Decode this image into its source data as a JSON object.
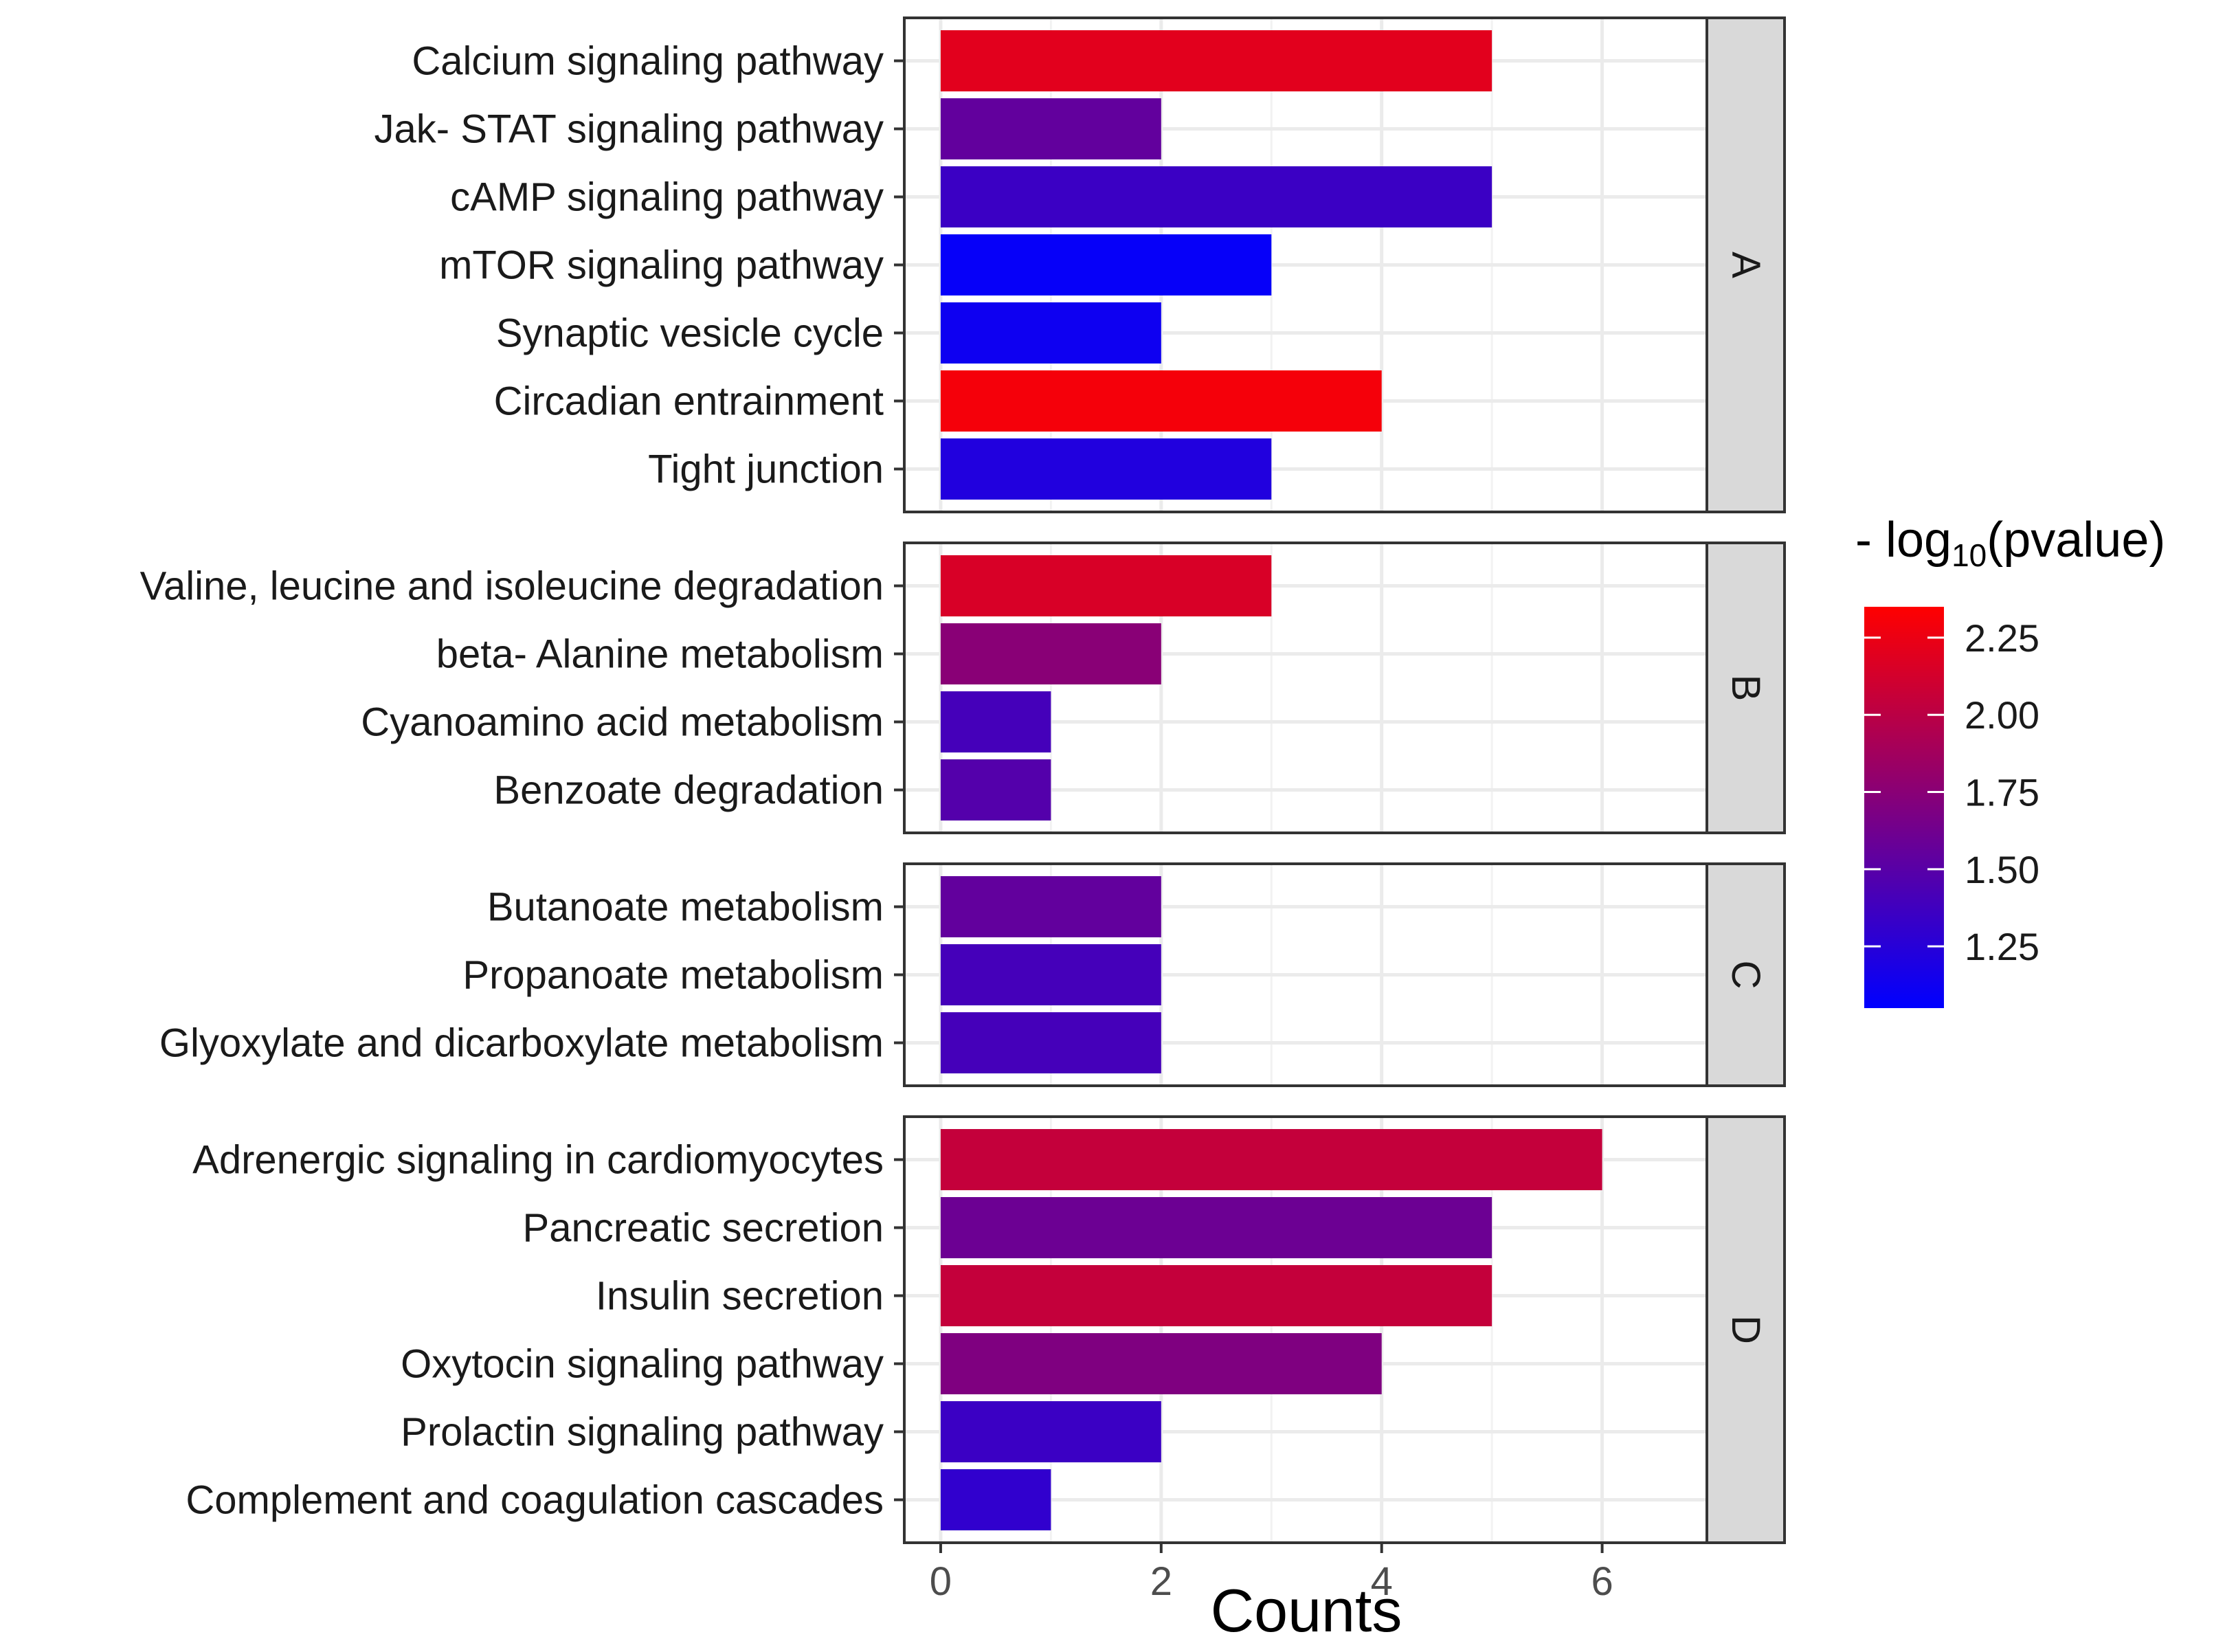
{
  "chart_data": {
    "type": "bar",
    "orientation": "horizontal",
    "xlabel": "Counts",
    "xlim": [
      -0.33,
      6.95
    ],
    "xticks": [
      0,
      2,
      4,
      6
    ],
    "xtick_labels": [
      "0",
      "2",
      "4",
      "6"
    ],
    "grid": true,
    "facets": [
      {
        "label": "A",
        "categories": [
          "Calcium signaling pathway",
          "Jak- STAT signaling pathway",
          "cAMP signaling pathway",
          "mTOR signaling pathway",
          "Synaptic vesicle cycle",
          "Circadian entrainment",
          "Tight junction"
        ],
        "values": [
          5,
          2,
          5,
          3,
          2,
          4,
          3
        ],
        "neg_log10_pvalue": [
          2.2,
          1.55,
          1.35,
          1.08,
          1.12,
          2.3,
          1.22
        ]
      },
      {
        "label": "B",
        "categories": [
          "Valine, leucine and isoleucine degradation",
          "beta- Alanine metabolism",
          "Cyanoamino acid metabolism",
          "Benzoate degradation"
        ],
        "values": [
          3,
          2,
          1,
          1
        ],
        "neg_log10_pvalue": [
          2.15,
          1.75,
          1.4,
          1.48
        ]
      },
      {
        "label": "C",
        "categories": [
          "Butanoate metabolism",
          "Propanoate metabolism",
          "Glyoxylate and dicarboxylate metabolism"
        ],
        "values": [
          2,
          2,
          2
        ],
        "neg_log10_pvalue": [
          1.55,
          1.4,
          1.4
        ]
      },
      {
        "label": "D",
        "categories": [
          "Adrenergic signaling in cardiomyocytes",
          "Pancreatic secretion",
          "Insulin secretion",
          "Oxytocin signaling pathway",
          "Prolactin signaling pathway",
          "Complement and coagulation cascades"
        ],
        "values": [
          6,
          5,
          5,
          4,
          2,
          1
        ],
        "neg_log10_pvalue": [
          2.05,
          1.6,
          2.05,
          1.7,
          1.35,
          1.3
        ]
      }
    ],
    "legend": {
      "title_prefix": "- log",
      "title_subscript": "10",
      "title_suffix": "(pvalue)",
      "position": "right",
      "range": [
        1.05,
        2.35
      ],
      "low_color": "#0000ff",
      "high_color": "#ff0000",
      "ticks": [
        1.25,
        1.5,
        1.75,
        2.0,
        2.25
      ],
      "tick_labels": [
        "1.25",
        "1.50",
        "1.75",
        "2.00",
        "2.25"
      ]
    }
  }
}
